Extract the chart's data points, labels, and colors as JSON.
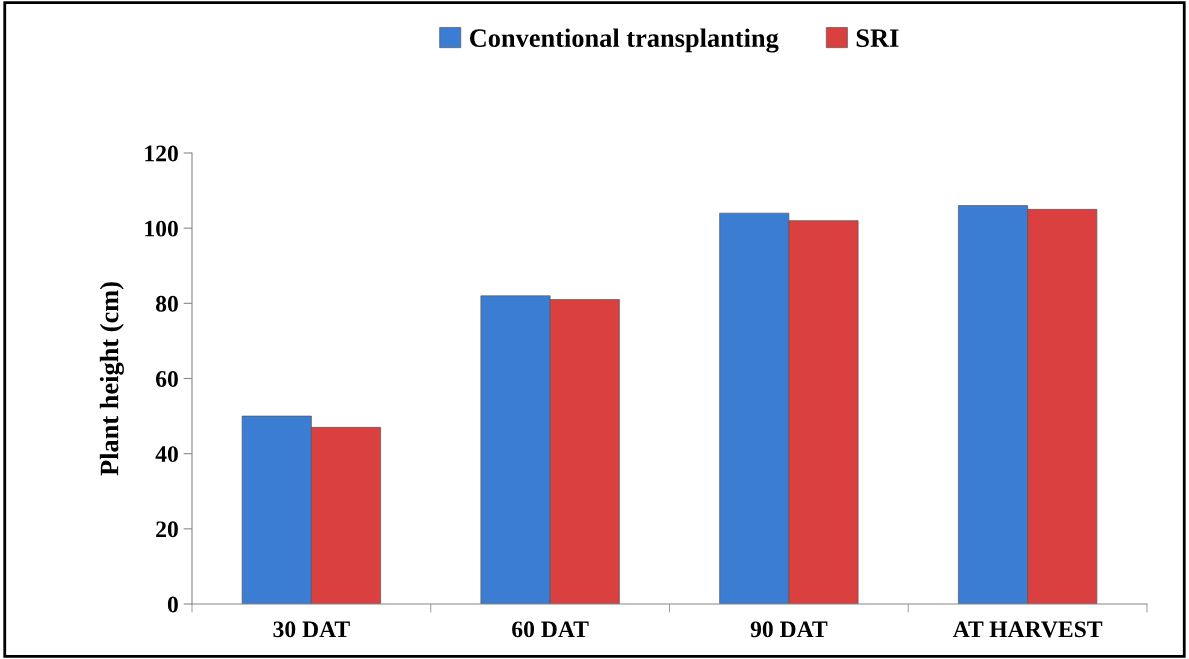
{
  "chart_data": {
    "type": "bar",
    "ylabel": "Plant height (cm)",
    "categories": [
      "30 DAT",
      "60 DAT",
      "90 DAT",
      "AT HARVEST"
    ],
    "series": [
      {
        "name": "Conventional transplanting",
        "color": "#3c7dd4",
        "values": [
          50,
          82,
          104,
          106
        ]
      },
      {
        "name": "SRI",
        "color": "#d9403f",
        "values": [
          47,
          81,
          102,
          105
        ]
      }
    ],
    "ylim": [
      0,
      120
    ],
    "yticks": [
      0,
      20,
      40,
      60,
      80,
      100,
      120
    ],
    "grid": false,
    "legend": "top"
  }
}
